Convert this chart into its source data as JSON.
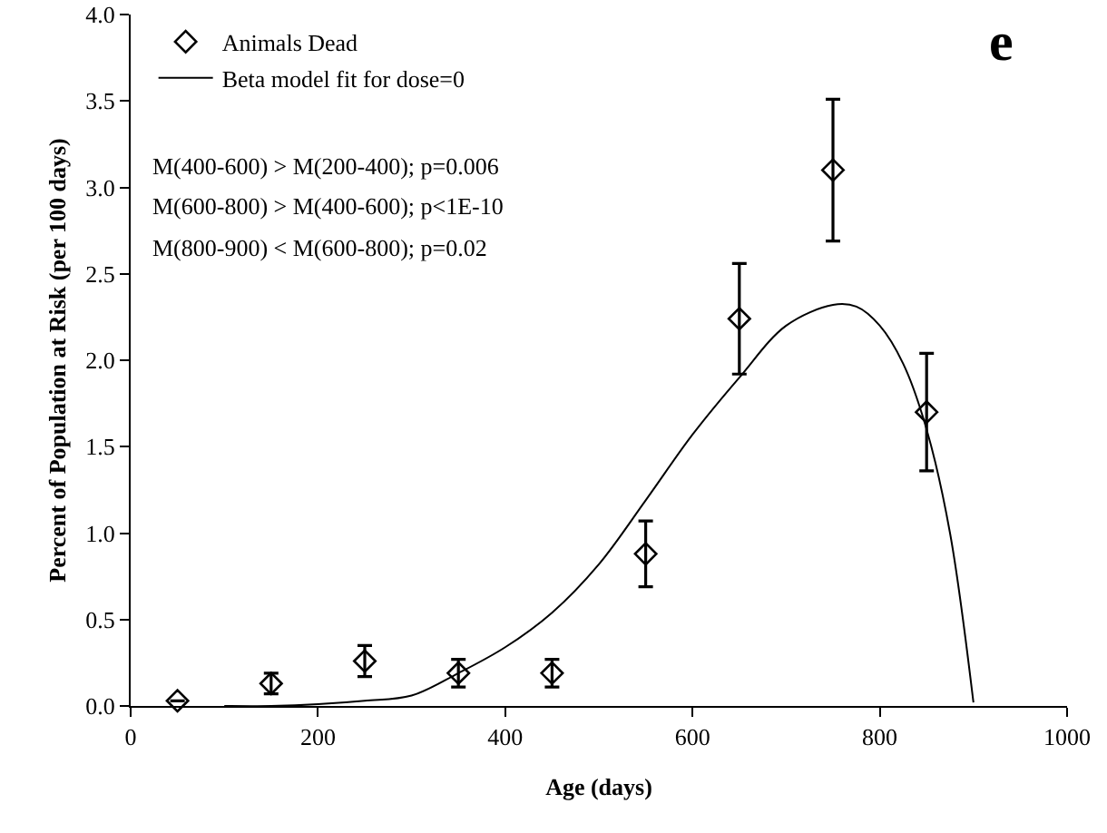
{
  "chart_data": {
    "type": "scatter",
    "xlabel": "Age (days)",
    "ylabel": "Percent of Population at Risk (per 100 days)",
    "annotations": [
      "e",
      "M(400-600) > M(200-400); p=0.006",
      "M(600-800) > M(400-600); p<1E-10",
      "M(800-900) < M(600-800); p=0.02"
    ],
    "xlim": [
      0,
      1000
    ],
    "xticks": [
      0,
      200,
      400,
      600,
      800,
      1000
    ],
    "ylim": [
      0,
      4
    ],
    "yticks": [
      {
        "value": 0,
        "label": "0.0"
      },
      {
        "value": 0.5,
        "label": "0.5"
      },
      {
        "value": 1,
        "label": "1.0"
      },
      {
        "value": 1.5,
        "label": "1.5"
      },
      {
        "value": 2,
        "label": "2.0"
      },
      {
        "value": 2.5,
        "label": "2.5"
      },
      {
        "value": 3,
        "label": "3.0"
      },
      {
        "value": 3.5,
        "label": "3.5"
      },
      {
        "value": 4,
        "label": "4.0"
      }
    ],
    "grid": false,
    "legend": "top left",
    "series": [
      {
        "name": "Animals Dead",
        "marker": "diamond",
        "color": "#000000",
        "x": [
          50,
          150,
          250,
          350,
          450,
          550,
          650,
          750,
          850
        ],
        "values": [
          0.03,
          0.13,
          0.26,
          0.19,
          0.19,
          0.88,
          2.24,
          3.1,
          1.7
        ],
        "errors": [
          null,
          0.06,
          0.09,
          0.08,
          0.08,
          0.19,
          0.32,
          0.41,
          0.34
        ]
      },
      {
        "name": "Beta model fit for dose=0",
        "type": "line",
        "marker": "none",
        "line_style": "solid",
        "color": "#000000",
        "x": [
          100,
          150,
          200,
          250,
          300,
          350,
          400,
          450,
          500,
          550,
          600,
          650,
          700,
          750,
          775,
          800,
          825,
          850,
          875,
          900
        ],
        "values": [
          0,
          0,
          0.01,
          0.03,
          0.06,
          0.19,
          0.34,
          0.54,
          0.82,
          1.19,
          1.57,
          1.9,
          2.2,
          2.32,
          2.31,
          2.2,
          1.98,
          1.6,
          1,
          0.02
        ]
      }
    ]
  }
}
